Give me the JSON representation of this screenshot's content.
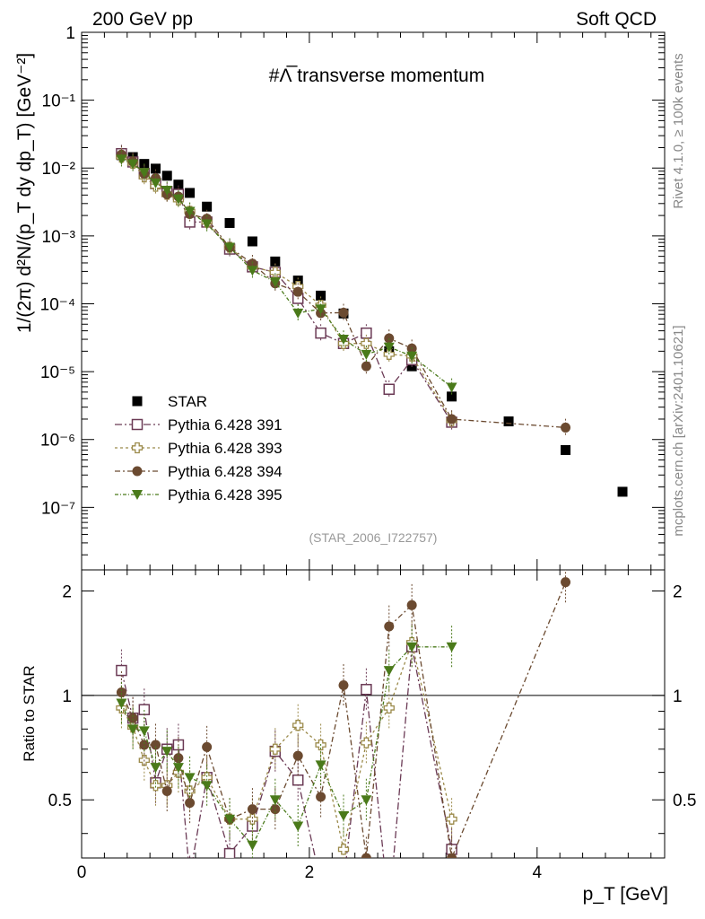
{
  "header": {
    "left": "200 GeV pp",
    "right": "Soft QCD"
  },
  "side_labels": {
    "rivet": "Rivet 4.1.0, ≥ 100k events",
    "mcplots": "mcplots.cern.ch [arXiv:2401.10621]"
  },
  "chart_data": {
    "type": "scatter",
    "title": "#Λ̅ transverse momentum",
    "xlabel": "p_T [GeV]",
    "ylabel": "1/(2π) d²N/(p_T dy dp_T) [GeV⁻²]",
    "ratio_ylabel": "Ratio to STAR",
    "analysis_tag": "(STAR_2006_I722757)",
    "xlim": [
      0,
      5.12
    ],
    "ylim": [
      1.2e-08,
      1.0
    ],
    "yscale": "log",
    "ratio_ylim": [
      0.34,
      2.3
    ],
    "x_ticks": [
      "0",
      "2",
      "4"
    ],
    "y_ticks": [
      "1",
      "10⁻¹",
      "10⁻²",
      "10⁻³",
      "10⁻⁴",
      "10⁻⁵",
      "10⁻⁶",
      "10⁻⁷"
    ],
    "ratio_ticks": [
      "0.5",
      "1",
      "2"
    ],
    "series": [
      {
        "name": "STAR",
        "color": "#000000",
        "marker": "square",
        "x": [
          0.35,
          0.45,
          0.55,
          0.65,
          0.75,
          0.85,
          0.95,
          1.1,
          1.3,
          1.5,
          1.7,
          1.9,
          2.1,
          2.3,
          2.5,
          2.7,
          2.9,
          3.25,
          3.75,
          4.25,
          4.75
        ],
        "y": [
          0.0155,
          0.0145,
          0.0115,
          0.0098,
          0.0077,
          0.0057,
          0.0043,
          0.0027,
          0.00155,
          0.00083,
          0.00042,
          0.00022,
          0.000132,
          7.2e-05,
          3.6e-05,
          2e-05,
          1.2e-05,
          4.3e-06,
          1.85e-06,
          7e-07,
          1.7e-07
        ]
      },
      {
        "name": "Pythia 6.428 391",
        "color": "#6b3a55",
        "marker": "open-square",
        "x": [
          0.35,
          0.45,
          0.55,
          0.65,
          0.75,
          0.85,
          0.95,
          1.1,
          1.3,
          1.5,
          1.7,
          1.9,
          2.1,
          2.3,
          2.5,
          2.7,
          2.9,
          3.25
        ],
        "y": [
          0.0163,
          0.0123,
          0.0083,
          0.0059,
          0.0045,
          0.0041,
          0.0016,
          0.0016,
          0.00064,
          0.00035,
          0.00029,
          0.00012,
          3.7e-05,
          2.6e-05,
          3.7e-05,
          5.5e-06,
          1.5e-05,
          1.8e-06
        ],
        "ratio": [
          1.18,
          0.86,
          0.91,
          0.56,
          0.7,
          0.72,
          0.3,
          0.58,
          0.35,
          0.42,
          0.69,
          0.57,
          0.29,
          0.29,
          1.04,
          0.24,
          1.38,
          0.36
        ]
      },
      {
        "name": "Pythia 6.428 393",
        "color": "#9b8a4a",
        "marker": "open-cross",
        "x": [
          0.35,
          0.45,
          0.55,
          0.65,
          0.75,
          0.85,
          0.95,
          1.1,
          1.3,
          1.5,
          1.7,
          1.9,
          2.1,
          2.3,
          2.5,
          2.7,
          2.9,
          3.25
        ],
        "y": [
          0.0145,
          0.0118,
          0.0074,
          0.0054,
          0.0041,
          0.0034,
          0.0023,
          0.0016,
          0.00068,
          0.00035,
          0.00029,
          0.00018,
          9.5e-05,
          2.6e-05,
          2.6e-05,
          1.8e-05,
          1.7e-05,
          1.9e-06
        ],
        "ratio": [
          0.92,
          0.81,
          0.65,
          0.55,
          0.55,
          0.6,
          0.53,
          0.58,
          0.44,
          0.44,
          0.7,
          0.82,
          0.72,
          0.36,
          0.73,
          0.92,
          1.42,
          0.44
        ]
      },
      {
        "name": "Pythia 6.428 394",
        "color": "#6b4a30",
        "marker": "circle",
        "x": [
          0.35,
          0.45,
          0.55,
          0.65,
          0.75,
          0.85,
          0.95,
          1.1,
          1.3,
          1.5,
          1.7,
          1.9,
          2.1,
          2.3,
          2.5,
          2.7,
          2.9,
          3.25,
          4.25
        ],
        "y": [
          0.0158,
          0.0125,
          0.0082,
          0.0071,
          0.0041,
          0.0038,
          0.0021,
          0.0018,
          0.00068,
          0.00039,
          0.0002,
          0.00015,
          7.3e-05,
          7.4e-05,
          1.2e-05,
          3.1e-05,
          2.2e-05,
          2e-06,
          1.5e-06
        ],
        "ratio": [
          1.02,
          0.86,
          0.72,
          0.72,
          0.53,
          0.66,
          0.49,
          0.71,
          0.44,
          0.47,
          0.47,
          0.67,
          0.51,
          1.07,
          0.34,
          1.58,
          1.82,
          0.34,
          2.12
        ]
      },
      {
        "name": "Pythia 6.428 395",
        "color": "#4a7a1a",
        "marker": "triangle-down",
        "x": [
          0.35,
          0.45,
          0.55,
          0.65,
          0.75,
          0.85,
          0.95,
          1.1,
          1.3,
          1.5,
          1.7,
          1.9,
          2.1,
          2.3,
          2.5,
          2.7,
          2.9,
          3.25
        ],
        "y": [
          0.0135,
          0.0115,
          0.0086,
          0.006,
          0.0047,
          0.0035,
          0.0023,
          0.0015,
          0.00068,
          0.00031,
          0.00021,
          7.3e-05,
          8.4e-05,
          3e-05,
          1.8e-05,
          2.3e-05,
          1.7e-05,
          5.9e-06
        ],
        "ratio": [
          0.95,
          0.8,
          0.79,
          0.62,
          0.69,
          0.62,
          0.58,
          0.55,
          0.44,
          0.37,
          0.5,
          0.42,
          0.63,
          0.45,
          0.5,
          1.18,
          1.38,
          1.38
        ]
      }
    ]
  }
}
